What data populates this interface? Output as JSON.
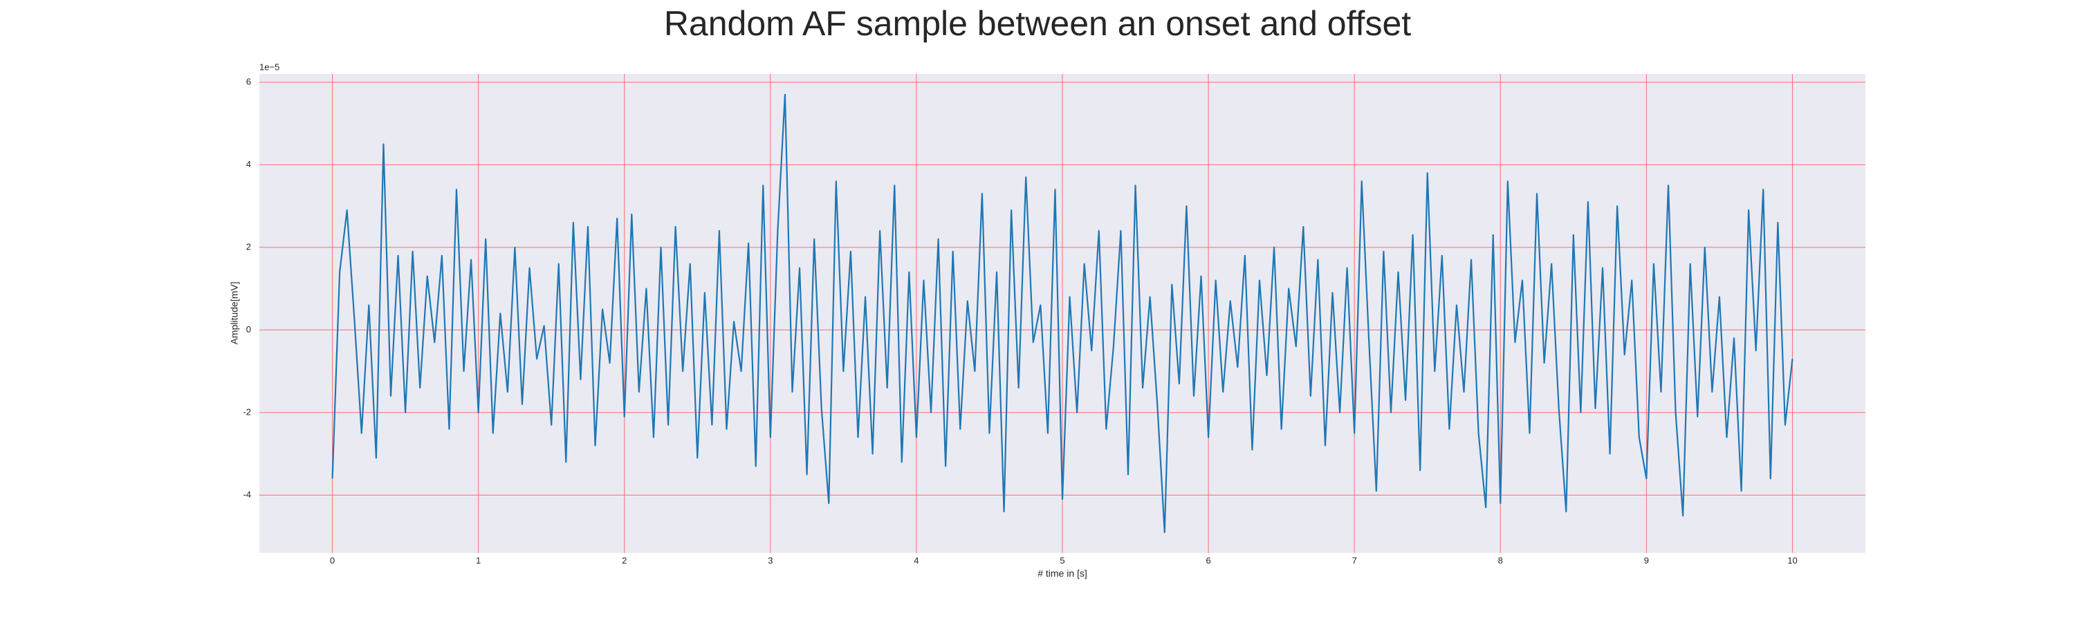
{
  "chart_data": {
    "type": "line",
    "title": "Random AF sample between an onset and offset",
    "x_label": "# time in [s]",
    "y_label": "Amplitude[mV]",
    "y_offset_text": "1e−5",
    "xlim": [
      -0.5,
      10.5
    ],
    "ylim": [
      -5.4,
      6.2
    ],
    "xticks": [
      0,
      1,
      2,
      3,
      4,
      5,
      6,
      7,
      8,
      9,
      10
    ],
    "yticks": [
      -4,
      -2,
      0,
      2,
      4,
      6
    ],
    "grid": true,
    "grid_color": "#ff4d4d",
    "background": "#eaeaf2",
    "x": [
      0,
      0.05,
      0.1,
      0.15,
      0.2,
      0.25,
      0.3,
      0.35,
      0.4,
      0.45,
      0.5,
      0.55,
      0.6,
      0.65,
      0.7,
      0.75,
      0.8,
      0.85,
      0.9,
      0.95,
      1,
      1.05,
      1.1,
      1.15,
      1.2,
      1.25,
      1.3,
      1.35,
      1.4,
      1.45,
      1.5,
      1.55,
      1.6,
      1.65,
      1.7,
      1.75,
      1.8,
      1.85,
      1.9,
      1.95,
      2,
      2.05,
      2.1,
      2.15,
      2.2,
      2.25,
      2.3,
      2.35,
      2.4,
      2.45,
      2.5,
      2.55,
      2.6,
      2.65,
      2.7,
      2.75,
      2.8,
      2.85,
      2.9,
      2.95,
      3,
      3.05,
      3.1,
      3.15,
      3.2,
      3.25,
      3.3,
      3.35,
      3.4,
      3.45,
      3.5,
      3.55,
      3.6,
      3.65,
      3.7,
      3.75,
      3.8,
      3.85,
      3.9,
      3.95,
      4,
      4.05,
      4.1,
      4.15,
      4.2,
      4.25,
      4.3,
      4.35,
      4.4,
      4.45,
      4.5,
      4.55,
      4.6,
      4.65,
      4.7,
      4.75,
      4.8,
      4.85,
      4.9,
      4.95,
      5,
      5.05,
      5.1,
      5.15,
      5.2,
      5.25,
      5.3,
      5.35,
      5.4,
      5.45,
      5.5,
      5.55,
      5.6,
      5.65,
      5.7,
      5.75,
      5.8,
      5.85,
      5.9,
      5.95,
      6,
      6.05,
      6.1,
      6.15,
      6.2,
      6.25,
      6.3,
      6.35,
      6.4,
      6.45,
      6.5,
      6.55,
      6.6,
      6.65,
      6.7,
      6.75,
      6.8,
      6.85,
      6.9,
      6.95,
      7,
      7.05,
      7.1,
      7.15,
      7.2,
      7.25,
      7.3,
      7.35,
      7.4,
      7.45,
      7.5,
      7.55,
      7.6,
      7.65,
      7.7,
      7.75,
      7.8,
      7.85,
      7.9,
      7.95,
      8,
      8.05,
      8.1,
      8.15,
      8.2,
      8.25,
      8.3,
      8.35,
      8.4,
      8.45,
      8.5,
      8.55,
      8.6,
      8.65,
      8.7,
      8.75,
      8.8,
      8.85,
      8.9,
      8.95,
      9,
      9.05,
      9.1,
      9.15,
      9.2,
      9.25,
      9.3,
      9.35,
      9.4,
      9.45,
      9.5,
      9.55,
      9.6,
      9.65,
      9.7,
      9.75,
      9.8,
      9.85,
      9.9,
      9.95,
      10
    ],
    "series": [
      {
        "color": "#1f77b4",
        "values": [
          -3.6,
          1.4,
          2.9,
          0.3,
          -2.5,
          0.6,
          -3.1,
          4.5,
          -1.6,
          1.8,
          -2.0,
          1.9,
          -1.4,
          1.3,
          -0.3,
          1.8,
          -2.4,
          3.4,
          -1.0,
          1.7,
          -2.0,
          2.2,
          -2.5,
          0.4,
          -1.5,
          2.0,
          -1.8,
          1.5,
          -0.7,
          0.1,
          -2.3,
          1.6,
          -3.2,
          2.6,
          -1.2,
          2.5,
          -2.8,
          0.5,
          -0.8,
          2.7,
          -2.1,
          2.8,
          -1.5,
          1.0,
          -2.6,
          2.0,
          -2.3,
          2.5,
          -1.0,
          1.6,
          -3.1,
          0.9,
          -2.3,
          2.4,
          -2.4,
          0.2,
          -1.0,
          2.1,
          -3.3,
          3.5,
          -2.6,
          2.4,
          5.7,
          -1.5,
          1.5,
          -3.5,
          2.2,
          -1.9,
          -4.2,
          3.6,
          -1.0,
          1.9,
          -2.6,
          0.8,
          -3.0,
          2.4,
          -1.4,
          3.5,
          -3.2,
          1.4,
          -2.6,
          1.2,
          -2.0,
          2.2,
          -3.3,
          1.9,
          -2.4,
          0.7,
          -1.0,
          3.3,
          -2.5,
          1.4,
          -4.4,
          2.9,
          -1.4,
          3.7,
          -0.3,
          0.6,
          -2.5,
          3.4,
          -4.1,
          0.8,
          -2.0,
          1.6,
          -0.5,
          2.4,
          -2.4,
          -0.4,
          2.4,
          -3.5,
          3.5,
          -1.4,
          0.8,
          -1.8,
          -4.9,
          1.1,
          -1.3,
          3.0,
          -1.6,
          1.3,
          -2.6,
          1.2,
          -1.5,
          0.7,
          -0.9,
          1.8,
          -2.9,
          1.2,
          -1.1,
          2.0,
          -2.4,
          1.0,
          -0.4,
          2.5,
          -1.6,
          1.7,
          -2.8,
          0.9,
          -2.0,
          1.5,
          -2.5,
          3.6,
          -0.3,
          -3.9,
          1.9,
          -2.0,
          1.4,
          -1.7,
          2.3,
          -3.4,
          3.8,
          -1.0,
          1.8,
          -2.4,
          0.6,
          -1.5,
          1.7,
          -2.5,
          -4.3,
          2.3,
          -4.2,
          3.6,
          -0.3,
          1.2,
          -2.5,
          3.3,
          -0.8,
          1.6,
          -1.9,
          -4.4,
          2.3,
          -2.0,
          3.1,
          -1.9,
          1.5,
          -3.0,
          3.0,
          -0.6,
          1.2,
          -2.6,
          -3.6,
          1.6,
          -1.5,
          3.5,
          -2.0,
          -4.5,
          1.6,
          -2.1,
          2.0,
          -1.5,
          0.8,
          -2.6,
          -0.2,
          -3.9,
          2.9,
          -0.5,
          3.4,
          -3.6,
          2.6,
          -2.3,
          -0.7
        ]
      }
    ]
  }
}
